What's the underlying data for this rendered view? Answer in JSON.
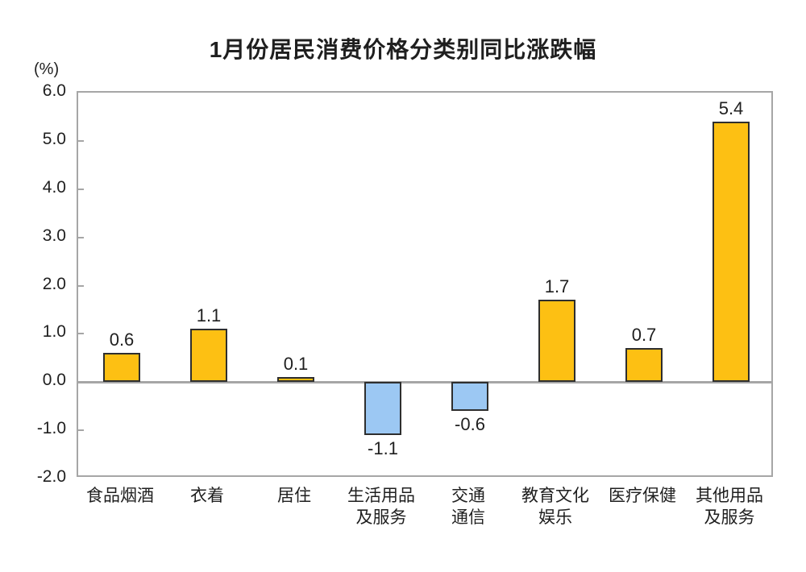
{
  "chart_data": {
    "type": "bar",
    "title": "1月份居民消费价格分类别同比涨跌幅",
    "unit_label": "(%)",
    "categories": [
      "食品烟酒",
      "衣着",
      "居住",
      "生活用品\n及服务",
      "交通\n通信",
      "教育文化\n娱乐",
      "医疗保健",
      "其他用品\n及服务"
    ],
    "values": [
      0.6,
      1.1,
      0.1,
      -1.1,
      -0.6,
      1.7,
      0.7,
      5.4
    ],
    "data_labels": [
      "0.6",
      "1.1",
      "0.1",
      "-1.1",
      "-0.6",
      "1.7",
      "0.7",
      "5.4"
    ],
    "ylim": [
      -2.0,
      6.0
    ],
    "yticks": [
      6.0,
      5.0,
      4.0,
      3.0,
      2.0,
      1.0,
      0.0,
      -1.0,
      -2.0
    ],
    "ytick_labels": [
      "6.0",
      "5.0",
      "4.0",
      "3.0",
      "2.0",
      "1.0",
      "0.0",
      "-1.0",
      "-2.0"
    ],
    "grid": false,
    "legend": false,
    "colors": {
      "positive_bar": "#FDC013",
      "negative_bar": "#9CC8F3",
      "bar_border": "#2E2E2E",
      "axis_line": "#A6A6A6",
      "text": "#1F1F1F"
    }
  }
}
